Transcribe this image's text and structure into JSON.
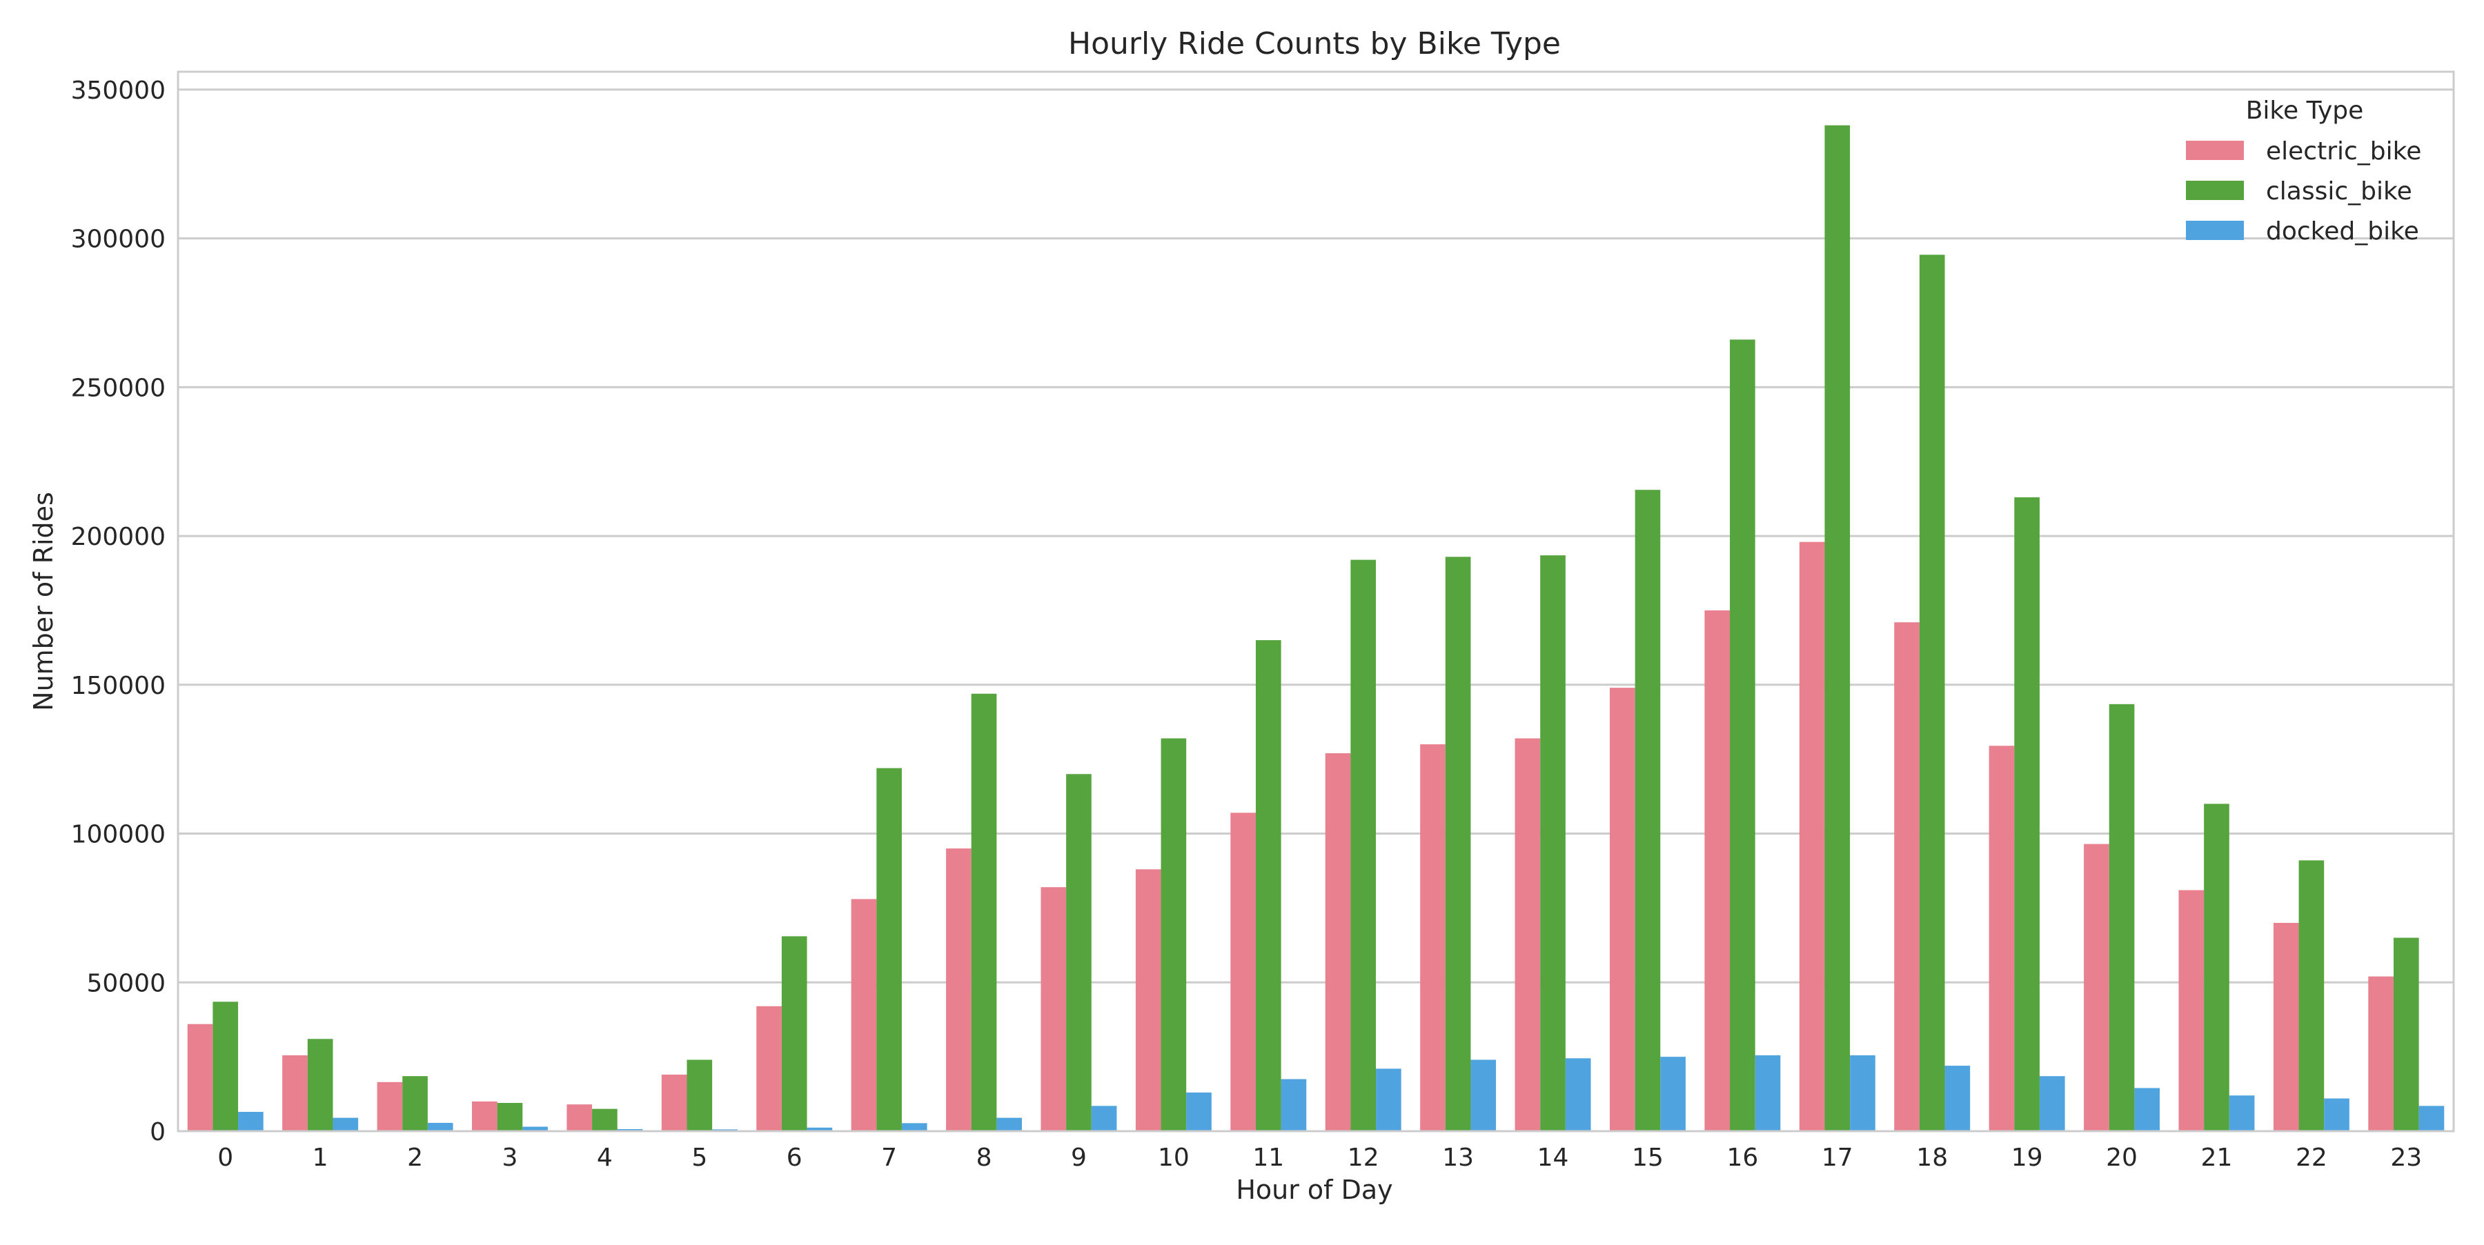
{
  "chart_data": {
    "type": "bar",
    "title": "Hourly Ride Counts by Bike Type",
    "xlabel": "Hour of Day",
    "ylabel": "Number of Rides",
    "categories": [
      "0",
      "1",
      "2",
      "3",
      "4",
      "5",
      "6",
      "7",
      "8",
      "9",
      "10",
      "11",
      "12",
      "13",
      "14",
      "15",
      "16",
      "17",
      "18",
      "19",
      "20",
      "21",
      "22",
      "23"
    ],
    "series": [
      {
        "name": "electric_bike",
        "color": "#e8808f",
        "values": [
          36000,
          25500,
          16500,
          10000,
          9000,
          19000,
          42000,
          78000,
          95000,
          82000,
          88000,
          107000,
          127000,
          130000,
          132000,
          149000,
          175000,
          198000,
          171000,
          129500,
          96500,
          81000,
          70000,
          52000
        ]
      },
      {
        "name": "classic_bike",
        "color": "#56a43e",
        "values": [
          43500,
          31000,
          18500,
          9500,
          7500,
          24000,
          65500,
          122000,
          147000,
          120000,
          132000,
          165000,
          192000,
          193000,
          193500,
          215500,
          266000,
          338000,
          294500,
          213000,
          143500,
          110000,
          91000,
          65000
        ]
      },
      {
        "name": "docked_bike",
        "color": "#4fa3de",
        "values": [
          6500,
          4500,
          2800,
          1500,
          700,
          600,
          1200,
          2700,
          4500,
          8500,
          13000,
          17500,
          21000,
          24000,
          24500,
          25000,
          25500,
          25500,
          22000,
          18500,
          14500,
          12000,
          11000,
          8500
        ]
      }
    ],
    "ylim": [
      0,
      356000
    ],
    "yticks": [
      0,
      50000,
      100000,
      150000,
      200000,
      250000,
      300000,
      350000
    ],
    "legend": {
      "title": "Bike Type",
      "placement": "top-right"
    },
    "grid": true
  }
}
